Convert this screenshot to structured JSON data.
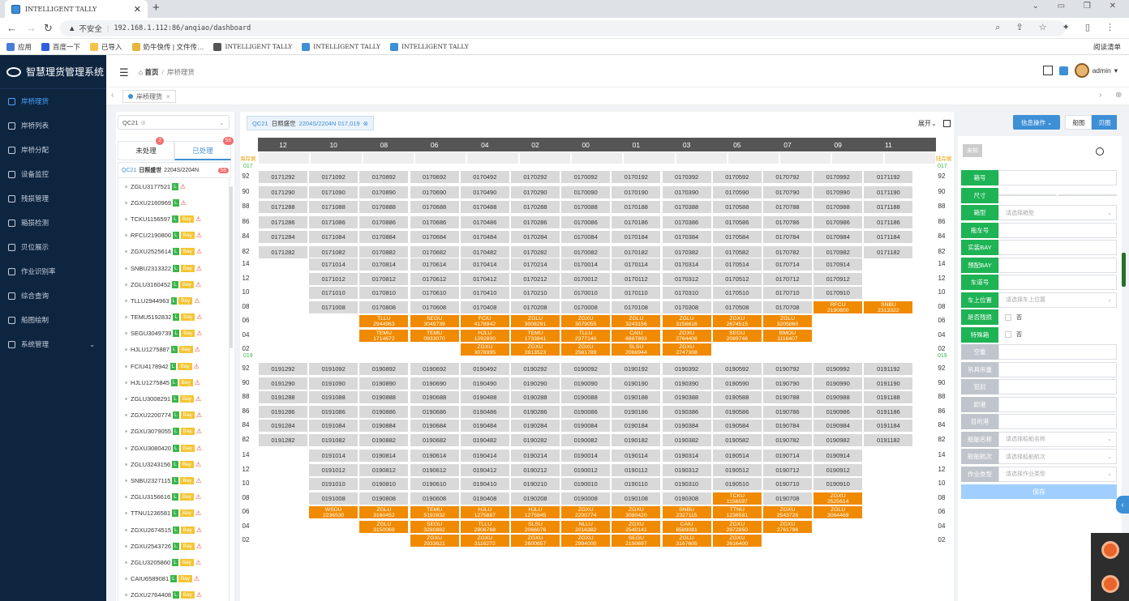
{
  "browser": {
    "tab_title": "INTELLIGENT TALLY",
    "insecure_label": "不安全",
    "url": "192.168.1.112:86/anqiao/dashboard",
    "bookmarks": [
      "应用",
      "百度一下",
      "已导入",
      "奶牛快传 | 文件传…",
      "INTELLIGENT TALLY",
      "INTELLIGENT TALLY",
      "INTELLIGENT TALLY"
    ],
    "reading_list": "阅读清单"
  },
  "app": {
    "title": "智慧理货管理系统",
    "user": "admin"
  },
  "sidebar": [
    {
      "label": "岸桥理货",
      "active": true
    },
    {
      "label": "岸桥列表"
    },
    {
      "label": "岸桥分配"
    },
    {
      "label": "设备监控"
    },
    {
      "label": "残损管理"
    },
    {
      "label": "箱损检测"
    },
    {
      "label": "贝位展示"
    },
    {
      "label": "作业识别率"
    },
    {
      "label": "综合查询"
    },
    {
      "label": "船图绘制"
    },
    {
      "label": "系统管理",
      "expandable": true
    }
  ],
  "breadcrumb": {
    "home": "首页",
    "current": "岸桥理货"
  },
  "tag": {
    "label": "岸桥理货"
  },
  "left": {
    "qc_select": "QC21",
    "tab_pending": "未处理",
    "pending_count": "2",
    "tab_done": "已处理",
    "done_count": "55",
    "voyage_qc": "QC21",
    "voyage_name": "日照盛世",
    "voyage_no": "2204S/2204N",
    "voyage_count": "56",
    "containers": [
      {
        "id": "ZGLU3177521",
        "L": true,
        "bay": false
      },
      {
        "id": "ZGXU2160969",
        "L": true,
        "bay": false
      },
      {
        "id": "TCKU1156597",
        "L": true,
        "bay": true
      },
      {
        "id": "RFCU2190800",
        "L": true,
        "bay": true
      },
      {
        "id": "ZGXU2525614",
        "L": true,
        "bay": true
      },
      {
        "id": "SNBU2313322",
        "L": true,
        "bay": true
      },
      {
        "id": "ZGLU3160452",
        "L": true,
        "bay": true
      },
      {
        "id": "TLLU2944963",
        "L": true,
        "bay": true
      },
      {
        "id": "TEMU5192832",
        "L": true,
        "bay": true
      },
      {
        "id": "SEGU3049739",
        "L": true,
        "bay": true
      },
      {
        "id": "HJLU1275887",
        "L": true,
        "bay": true
      },
      {
        "id": "FCIU4178942",
        "L": true,
        "bay": true
      },
      {
        "id": "HJLU1275845",
        "L": true,
        "bay": true
      },
      {
        "id": "ZGLU3008291",
        "L": true,
        "bay": true
      },
      {
        "id": "ZGXU2200774",
        "L": true,
        "bay": true
      },
      {
        "id": "ZGXU3079055",
        "L": true,
        "bay": true
      },
      {
        "id": "ZGXU3080420",
        "L": true,
        "bay": true
      },
      {
        "id": "ZGLU3243156",
        "L": true,
        "bay": true
      },
      {
        "id": "SNBU2327115",
        "L": true,
        "bay": true
      },
      {
        "id": "ZGLU3156616",
        "L": true,
        "bay": true
      },
      {
        "id": "TTNU1236581",
        "L": true,
        "bay": true
      },
      {
        "id": "ZGXU2674515",
        "L": true,
        "bay": true
      },
      {
        "id": "ZGXU2543726",
        "L": true,
        "bay": true
      },
      {
        "id": "ZGLU3205860",
        "L": true,
        "bay": true
      },
      {
        "id": "CAIU6589081",
        "L": true,
        "bay": true
      },
      {
        "id": "ZGXU2764408",
        "L": true,
        "bay": true
      }
    ]
  },
  "filter": {
    "qc": "QC21",
    "vessel": "日照盛世",
    "voyage": "2204S/2204N",
    "bay": "017,019",
    "expand": "展开"
  },
  "actions": {
    "info_op": "信息操作",
    "ship_view": "船图",
    "bay_view": "贝图"
  },
  "bay_plan": {
    "cols": [
      "12",
      "10",
      "08",
      "06",
      "04",
      "02",
      "00",
      "01",
      "03",
      "05",
      "07",
      "09",
      "11"
    ],
    "side_left": "海岸侧",
    "side_right": "陆岸侧",
    "sections": [
      {
        "bay": "017",
        "rows": [
          "92",
          "90",
          "88",
          "86",
          "84",
          "82"
        ],
        "start": 1,
        "pattern": "017"
      },
      {
        "rows": [
          "14",
          "12",
          "10",
          "08"
        ],
        "start": 0
      },
      {
        "bay": "019",
        "rows": [
          "92",
          "90",
          "88",
          "86",
          "84",
          "82"
        ]
      },
      {
        "rows": [
          "14",
          "12",
          "10",
          "08"
        ]
      }
    ],
    "orange_017": {
      "08": {
        "09": "RFCU\n2190800",
        "11": "SNBU\n2313322"
      },
      "06": {
        "08": "TLLU\n2944963",
        "06": "SEGU\n3049739",
        "04": "FCIU\n4178942",
        "02": "ZGLU\n3008291",
        "00": "ZGXU\n3079055",
        "01": "ZGLU\n3243156",
        "03": "ZGLU\n3156616",
        "05": "ZGXU\n2674515",
        "07": "ZGLU\n3205860"
      },
      "04": {
        "08": "TEMU\n1714672",
        "06": "TEMU\n0933070",
        "04": "HJLU\n1292800",
        "02": "TEMU\n1733841",
        "00": "TLLU\n2377140",
        "01": "CAIU\n6887893",
        "03": "ZGXU\n2764408",
        "05": "SEGU\n2089746",
        "07": "BMOU\n1116407"
      },
      "02": {
        "04": "ZGXU\n3078995",
        "02": "ZGXU\n2813523",
        "00": "ZGXU\n2581789",
        "01": "SLSU\n2066944",
        "03": "ZGXU\n2747308"
      }
    },
    "orange_019": {
      "08": {
        "05": "TCKU\n1156597",
        "09": "ZGXU\n2525614"
      },
      "06": {
        "10": "WSDU\n2236530",
        "08": "ZGLU\n3160452",
        "06": "TEMU\n5192832",
        "04": "HJLU\n1275887",
        "02": "HJLU\n1275845",
        "00": "ZGXU\n2200774",
        "01": "ZGXU\n3080420",
        "03": "SNBU\n2327115",
        "05": "TTNU\n1236581",
        "07": "ZGXU\n2543726",
        "09": "ZGLU\n3064469"
      },
      "04": {
        "08": "ZGLU\n3150069",
        "06": "SEGU\n3280882",
        "04": "TLLU\n2906768",
        "02": "SLSU\n2066076",
        "00": "NLLU\n2016382",
        "01": "ZGXU\n2540141",
        "03": "CAIU\n6589081",
        "05": "ZGXU\n2972850",
        "07": "ZGXU\n2761796"
      },
      "02": {
        "06": "ZGXU\n2933621",
        "04": "ZGXU\n3116272",
        "02": "ZGXU\n2600657",
        "00": "ZGXU\n2994000",
        "01": "SEGU\n2190697",
        "03": "ZGLU\n3167605",
        "05": "ZGXU\n2616400"
      }
    }
  },
  "form": {
    "status": "未知",
    "fields": [
      {
        "label": "箱号",
        "type": "input",
        "active": true
      },
      {
        "label": "尺寸",
        "type": "split",
        "active": true
      },
      {
        "label": "箱型",
        "type": "select",
        "placeholder": "请选择箱型",
        "active": true
      },
      {
        "label": "拖车号",
        "type": "input",
        "active": true
      },
      {
        "label": "实装BAY",
        "type": "input",
        "active": true
      },
      {
        "label": "预配BAY",
        "type": "input",
        "active": true
      },
      {
        "label": "车道号",
        "type": "input",
        "active": true
      },
      {
        "label": "车上位置",
        "type": "select",
        "placeholder": "请选择车上位置",
        "active": true
      },
      {
        "label": "是否残损",
        "type": "check",
        "value": "否",
        "active": true
      },
      {
        "label": "特殊箱",
        "type": "check",
        "value": "否",
        "active": true
      },
      {
        "label": "空重",
        "type": "input",
        "active": false
      },
      {
        "label": "吊具吊重",
        "type": "input",
        "active": false
      },
      {
        "label": "铅封",
        "type": "input",
        "active": false
      },
      {
        "label": "卸港",
        "type": "input",
        "active": false
      },
      {
        "label": "目的港",
        "type": "input",
        "active": false
      },
      {
        "label": "船舶名称",
        "type": "select",
        "placeholder": "请选择船舶名称",
        "active": false
      },
      {
        "label": "船舶航次",
        "type": "select",
        "placeholder": "请选择船舶航次",
        "active": false
      },
      {
        "label": "作业类型",
        "type": "select",
        "placeholder": "请选择作业类型",
        "active": false
      }
    ],
    "save": "保存"
  }
}
